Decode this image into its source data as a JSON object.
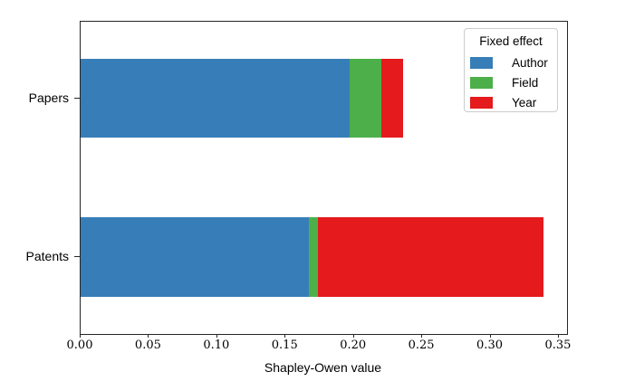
{
  "chart_data": {
    "type": "stacked_barh",
    "title": "",
    "categories": [
      "Papers",
      "Patents"
    ],
    "series": [
      {
        "name": "Author",
        "color": "#377eb8",
        "values": [
          0.197,
          0.167
        ]
      },
      {
        "name": "Field",
        "color": "#4daf4a",
        "values": [
          0.023,
          0.007
        ]
      },
      {
        "name": "Year",
        "color": "#e41a1c",
        "values": [
          0.016,
          0.165
        ]
      }
    ],
    "totals": [
      0.236,
      0.339
    ],
    "xlabel": "Shapley-Owen value",
    "ylabel": "",
    "xlim": [
      0,
      0.356
    ],
    "xticks": [
      0.0,
      0.05,
      0.1,
      0.15,
      0.2,
      0.25,
      0.3,
      0.35
    ],
    "xtick_labels": [
      "0.00",
      "0.05",
      "0.10",
      "0.15",
      "0.20",
      "0.25",
      "0.30",
      "0.35"
    ],
    "grid": false,
    "legend": {
      "title": "Fixed effect",
      "position": "upper right",
      "entries": [
        "Author",
        "Field",
        "Year"
      ]
    },
    "colors": {
      "spine": "#262626",
      "background": "#ffffff"
    }
  }
}
